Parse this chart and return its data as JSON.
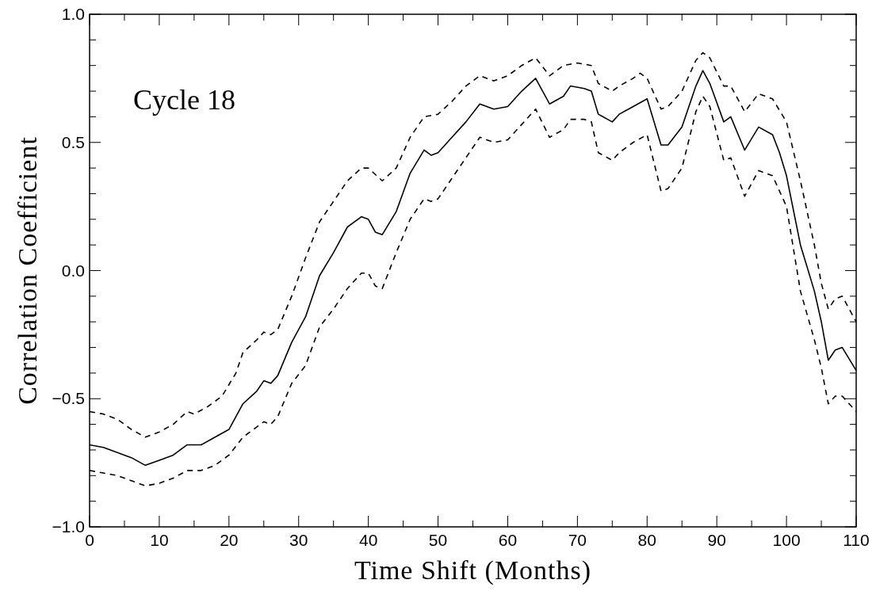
{
  "chart_data": {
    "type": "line",
    "xlabel": "Time Shift (Months)",
    "ylabel": "Correlation Coefficient",
    "annotations": [
      "Cycle 18"
    ],
    "xlim": [
      0,
      110
    ],
    "ylim": [
      -1,
      1
    ],
    "xticks": [
      0,
      {
        "value": 5,
        "label": null
      },
      10,
      {
        "value": 15,
        "label": null
      },
      20,
      {
        "value": 25,
        "label": null
      },
      30,
      {
        "value": 35,
        "label": null
      },
      40,
      {
        "value": 45,
        "label": null
      },
      50,
      {
        "value": 55,
        "label": null
      },
      60,
      {
        "value": 65,
        "label": null
      },
      70,
      {
        "value": 75,
        "label": null
      },
      80,
      {
        "value": 85,
        "label": null
      },
      90,
      {
        "value": 95,
        "label": null
      },
      100,
      {
        "value": 105,
        "label": null
      },
      110
    ],
    "yticks": [
      {
        "value": -1,
        "label": "−1.0"
      },
      {
        "value": -0.9,
        "label": null
      },
      {
        "value": -0.8,
        "label": null
      },
      {
        "value": -0.7,
        "label": null
      },
      {
        "value": -0.6,
        "label": null
      },
      {
        "value": -0.5,
        "label": "−0.5"
      },
      {
        "value": -0.4,
        "label": null
      },
      {
        "value": -0.3,
        "label": null
      },
      {
        "value": -0.2,
        "label": null
      },
      {
        "value": -0.1,
        "label": null
      },
      {
        "value": 0,
        "label": "0.0"
      },
      {
        "value": 0.1,
        "label": null
      },
      {
        "value": 0.2,
        "label": null
      },
      {
        "value": 0.3,
        "label": null
      },
      {
        "value": 0.4,
        "label": null
      },
      {
        "value": 0.5,
        "label": "0.5"
      },
      {
        "value": 0.6,
        "label": null
      },
      {
        "value": 0.7,
        "label": null
      },
      {
        "value": 0.8,
        "label": null
      },
      {
        "value": 0.9,
        "label": null
      },
      {
        "value": 1,
        "label": "1.0"
      }
    ],
    "grid": false,
    "marker": "none",
    "series": [
      {
        "color": "#000000",
        "line_style": "solid",
        "x": [
          0,
          2,
          4,
          6,
          8,
          10,
          12,
          14,
          16,
          18,
          20,
          22,
          24,
          25,
          26,
          27,
          29,
          31,
          33,
          35,
          37,
          39,
          40,
          41,
          42,
          44,
          46,
          48,
          49,
          50,
          52,
          54,
          56,
          58,
          60,
          62,
          64,
          66,
          68,
          69,
          71,
          72,
          73,
          75,
          76,
          78,
          80,
          82,
          83,
          85,
          87,
          88,
          89,
          91,
          92,
          94,
          96,
          98,
          99,
          100,
          102,
          104,
          105,
          106,
          107,
          108,
          110
        ],
        "values": [
          -0.68,
          -0.69,
          -0.71,
          -0.73,
          -0.76,
          -0.74,
          -0.72,
          -0.68,
          -0.68,
          -0.65,
          -0.62,
          -0.52,
          -0.47,
          -0.43,
          -0.44,
          -0.41,
          -0.28,
          -0.18,
          -0.02,
          0.07,
          0.17,
          0.21,
          0.2,
          0.15,
          0.14,
          0.23,
          0.38,
          0.47,
          0.45,
          0.46,
          0.52,
          0.58,
          0.65,
          0.63,
          0.64,
          0.7,
          0.75,
          0.65,
          0.68,
          0.72,
          0.71,
          0.7,
          0.61,
          0.58,
          0.61,
          0.64,
          0.67,
          0.49,
          0.49,
          0.56,
          0.72,
          0.78,
          0.73,
          0.58,
          0.6,
          0.47,
          0.56,
          0.53,
          0.46,
          0.37,
          0.1,
          -0.08,
          -0.2,
          -0.35,
          -0.31,
          -0.3,
          -0.39
        ]
      },
      {
        "color": "#000000",
        "line_style": "dashed",
        "x": [
          0,
          2,
          4,
          6,
          8,
          10,
          12,
          14,
          15,
          17,
          19,
          21,
          22,
          24,
          25,
          26,
          27,
          29,
          31,
          33,
          35,
          37,
          39,
          40,
          42,
          44,
          46,
          48,
          50,
          52,
          54,
          56,
          58,
          60,
          62,
          64,
          66,
          68,
          70,
          72,
          73,
          75,
          76,
          78,
          79,
          80,
          82,
          83,
          85,
          87,
          88,
          89,
          91,
          92,
          94,
          96,
          98,
          100,
          102,
          104,
          105,
          106,
          107,
          108,
          110
        ],
        "values": [
          -0.55,
          -0.56,
          -0.58,
          -0.62,
          -0.65,
          -0.63,
          -0.6,
          -0.55,
          -0.56,
          -0.53,
          -0.49,
          -0.4,
          -0.32,
          -0.27,
          -0.24,
          -0.25,
          -0.23,
          -0.1,
          0.05,
          0.19,
          0.27,
          0.35,
          0.4,
          0.4,
          0.35,
          0.4,
          0.52,
          0.6,
          0.61,
          0.66,
          0.72,
          0.76,
          0.74,
          0.76,
          0.8,
          0.83,
          0.76,
          0.8,
          0.81,
          0.8,
          0.73,
          0.7,
          0.72,
          0.75,
          0.77,
          0.75,
          0.63,
          0.64,
          0.7,
          0.82,
          0.85,
          0.83,
          0.72,
          0.72,
          0.62,
          0.69,
          0.67,
          0.58,
          0.35,
          0.1,
          -0.05,
          -0.15,
          -0.11,
          -0.1,
          -0.2
        ]
      },
      {
        "color": "#000000",
        "line_style": "dashed",
        "x": [
          0,
          2,
          4,
          6,
          8,
          10,
          12,
          14,
          16,
          18,
          20,
          22,
          24,
          25,
          26,
          27,
          29,
          31,
          33,
          35,
          37,
          39,
          40,
          41,
          42,
          44,
          46,
          48,
          49,
          50,
          52,
          54,
          56,
          58,
          60,
          62,
          64,
          66,
          68,
          69,
          71,
          72,
          73,
          75,
          76,
          78,
          80,
          82,
          83,
          85,
          87,
          88,
          89,
          91,
          92,
          94,
          96,
          98,
          100,
          102,
          104,
          105,
          106,
          107,
          108,
          110
        ],
        "values": [
          -0.78,
          -0.79,
          -0.8,
          -0.82,
          -0.84,
          -0.83,
          -0.81,
          -0.78,
          -0.78,
          -0.76,
          -0.72,
          -0.65,
          -0.61,
          -0.59,
          -0.6,
          -0.57,
          -0.44,
          -0.37,
          -0.22,
          -0.15,
          -0.07,
          -0.01,
          -0.01,
          -0.06,
          -0.07,
          0.07,
          0.2,
          0.28,
          0.27,
          0.28,
          0.36,
          0.44,
          0.52,
          0.5,
          0.51,
          0.57,
          0.63,
          0.52,
          0.55,
          0.59,
          0.59,
          0.58,
          0.46,
          0.43,
          0.46,
          0.5,
          0.53,
          0.31,
          0.32,
          0.4,
          0.62,
          0.68,
          0.64,
          0.43,
          0.44,
          0.29,
          0.39,
          0.37,
          0.25,
          -0.08,
          -0.27,
          -0.38,
          -0.52,
          -0.49,
          -0.49,
          -0.55
        ]
      }
    ]
  }
}
